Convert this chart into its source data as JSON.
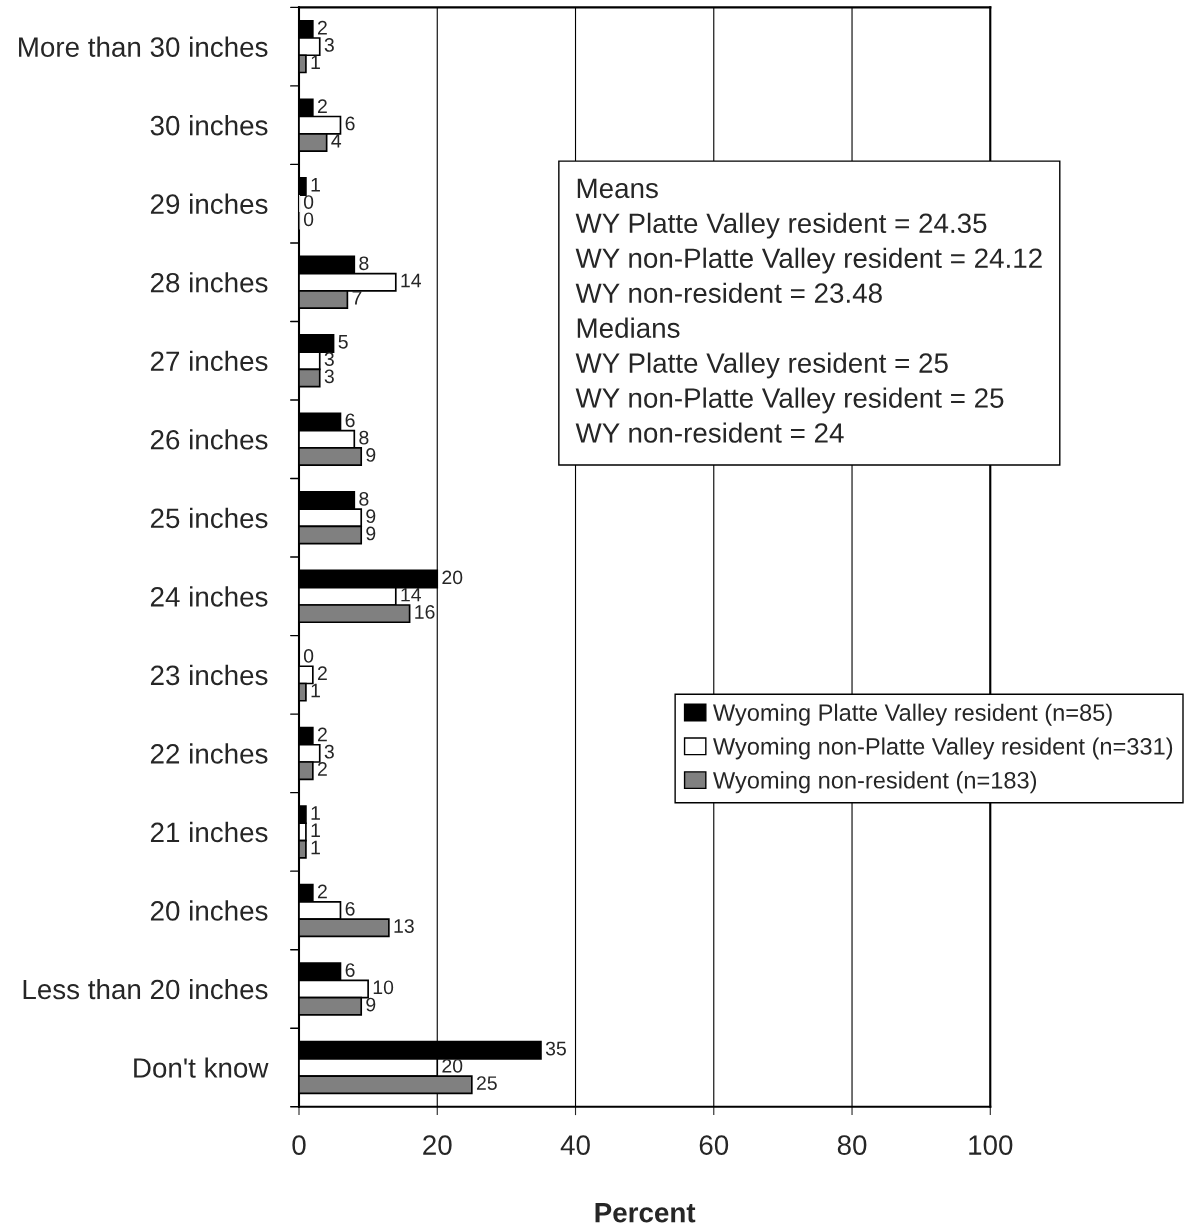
{
  "chart_data": {
    "type": "bar",
    "orientation": "horizontal",
    "xlabel": "Percent",
    "categories": [
      "More than 30 inches",
      "30 inches",
      "29 inches",
      "28 inches",
      "27 inches",
      "26 inches",
      "25 inches",
      "24 inches",
      "23 inches",
      "22 inches",
      "21 inches",
      "20 inches",
      "Less than 20 inches",
      "Don't know"
    ],
    "series": [
      {
        "name": "Wyoming Platte Valley resident (n=85)",
        "color": "#000000",
        "values": [
          2,
          2,
          1,
          8,
          5,
          6,
          8,
          20,
          0,
          2,
          1,
          2,
          6,
          35
        ]
      },
      {
        "name": "Wyoming non-Platte Valley resident (n=331)",
        "color": "#ffffff",
        "values": [
          3,
          6,
          0,
          14,
          3,
          8,
          9,
          14,
          2,
          3,
          1,
          6,
          10,
          20
        ]
      },
      {
        "name": "Wyoming non-resident (n=183)",
        "color": "#808080",
        "values": [
          1,
          4,
          0,
          7,
          3,
          9,
          9,
          16,
          1,
          2,
          1,
          13,
          9,
          25
        ]
      }
    ],
    "xlim": [
      0,
      100
    ],
    "xticks": [
      0,
      20,
      40,
      60,
      80,
      100
    ],
    "grid": "x",
    "data_labels": true,
    "legend": "right",
    "annotations": [
      "Means",
      "WY Platte Valley resident = 24.35",
      "WY non-Platte Valley resident = 24.12",
      "WY non-resident = 23.48",
      "Medians",
      "WY Platte Valley resident = 25",
      "WY non-Platte Valley resident = 25",
      "WY non-resident = 24"
    ]
  }
}
